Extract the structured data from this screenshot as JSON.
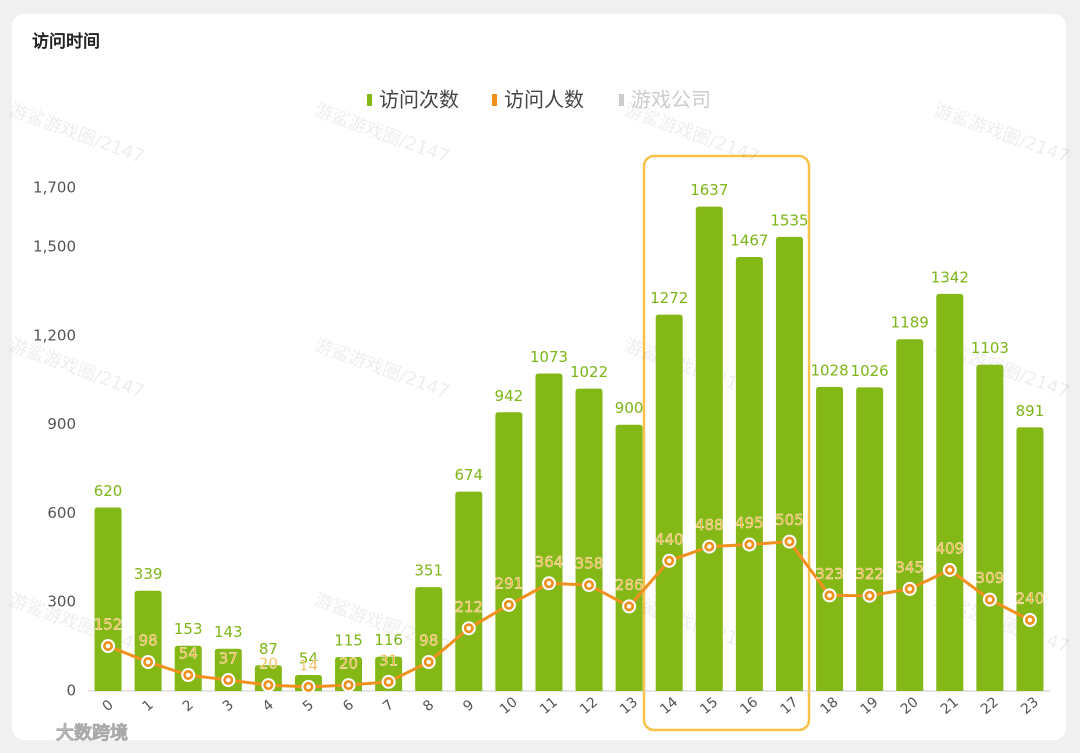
{
  "chart_data": {
    "type": "bar_line",
    "title": "访问时间",
    "categories": [
      "0",
      "1",
      "2",
      "3",
      "4",
      "5",
      "6",
      "7",
      "8",
      "9",
      "10",
      "11",
      "12",
      "13",
      "14",
      "15",
      "16",
      "17",
      "18",
      "19",
      "20",
      "21",
      "22",
      "23"
    ],
    "series": [
      {
        "name": "访问次数",
        "type": "bar",
        "color": "#84b816",
        "values": [
          620,
          339,
          153,
          143,
          87,
          54,
          115,
          116,
          351,
          674,
          942,
          1073,
          1022,
          900,
          1272,
          1637,
          1467,
          1535,
          1028,
          1026,
          1189,
          1342,
          1103,
          891
        ]
      },
      {
        "name": "访问人数",
        "type": "line",
        "color": "#f0901e",
        "label_color": "#f5a623",
        "values": [
          152,
          98,
          54,
          37,
          20,
          14,
          20,
          31,
          98,
          212,
          291,
          364,
          358,
          286,
          440,
          488,
          495,
          505,
          323,
          322,
          345,
          409,
          309,
          240
        ]
      }
    ],
    "hidden_series": [
      {
        "name": "游戏公司",
        "color": "#cccccc"
      }
    ],
    "ylim": [
      0,
      1700
    ],
    "yticks": [
      0,
      300,
      600,
      900,
      {
        "value": 1200,
        "label": "1,200"
      },
      {
        "value": 1500,
        "label": "1,500"
      },
      {
        "value": 1700,
        "label": "1,700"
      }
    ],
    "watermark": "游鲨游戏圈/2147",
    "logo": "大数跨境"
  }
}
